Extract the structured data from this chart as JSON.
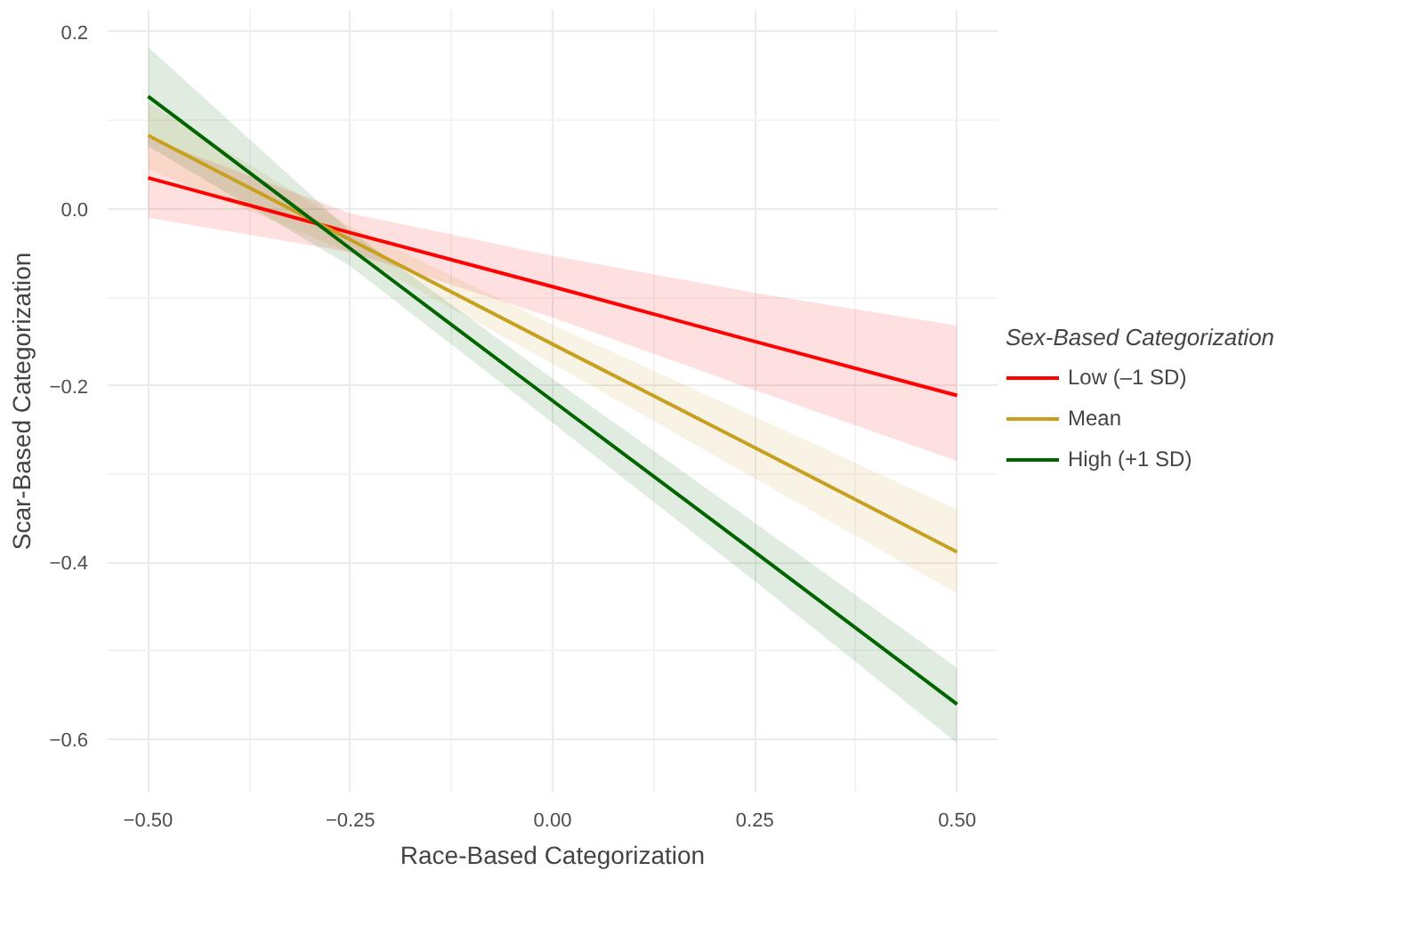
{
  "chart_data": {
    "type": "line",
    "xlabel": "Race-Based Categorization",
    "ylabel": "Scar-Based Categorization",
    "legend_title": "Sex-Based Categorization",
    "x": [
      -0.5,
      -0.25,
      0,
      0.25,
      0.5
    ],
    "series": [
      {
        "name": "Low (–1 SD)",
        "color": "#ff0000",
        "values": [
          0.035,
          -0.027,
          -0.088,
          -0.15,
          -0.211
        ],
        "lower": [
          -0.01,
          -0.049,
          -0.123,
          -0.205,
          -0.285
        ],
        "upper": [
          0.08,
          -0.005,
          -0.053,
          -0.095,
          -0.132
        ]
      },
      {
        "name": "Mean",
        "color": "#c8a020",
        "values": [
          0.083,
          -0.035,
          -0.153,
          -0.27,
          -0.388
        ],
        "lower": [
          0.045,
          -0.05,
          -0.175,
          -0.305,
          -0.435
        ],
        "upper": [
          0.12,
          -0.02,
          -0.131,
          -0.235,
          -0.34
        ]
      },
      {
        "name": "High (+1 SD)",
        "color": "#006400",
        "values": [
          0.127,
          -0.045,
          -0.217,
          -0.388,
          -0.56
        ],
        "lower": [
          0.071,
          -0.065,
          -0.242,
          -0.421,
          -0.604
        ],
        "upper": [
          0.183,
          -0.025,
          -0.192,
          -0.355,
          -0.519
        ]
      }
    ],
    "xlim": [
      -0.55,
      0.55
    ],
    "ylim": [
      -0.66,
      0.225
    ],
    "xticks": [
      {
        "value": -0.5,
        "label": "−0.50"
      },
      {
        "value": -0.25,
        "label": "−0.25"
      },
      {
        "value": 0,
        "label": "0.00"
      },
      {
        "value": 0.25,
        "label": "0.25"
      },
      {
        "value": 0.5,
        "label": "0.50"
      }
    ],
    "yticks": [
      {
        "value": -0.6,
        "label": "−0.6"
      },
      {
        "value": -0.4,
        "label": "−0.4"
      },
      {
        "value": -0.2,
        "label": "−0.2"
      },
      {
        "value": 0,
        "label": "0.0"
      },
      {
        "value": 0.2,
        "label": "0.2"
      }
    ],
    "grid": true,
    "legend": "right",
    "line_style": "solid"
  }
}
